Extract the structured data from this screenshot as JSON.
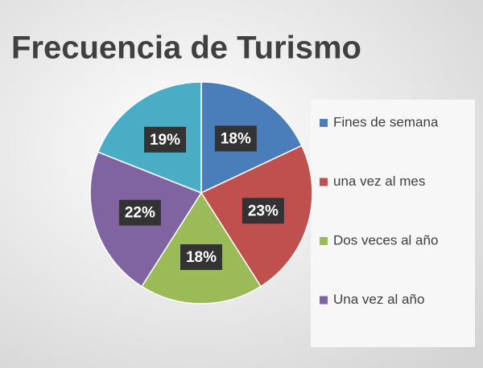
{
  "chart_data": {
    "type": "pie",
    "title": "Frecuencia de Turismo",
    "categories": [
      "Fines de semana",
      "una vez al mes",
      "Dos veces al año",
      "Una vez al año",
      null
    ],
    "values": [
      18,
      23,
      18,
      22,
      19
    ],
    "value_labels": [
      "18%",
      "23%",
      "18%",
      "22%",
      "19%"
    ],
    "colors": [
      "#4a7ebb",
      "#c0504d",
      "#9bbb59",
      "#8064a2",
      "#4bacc6"
    ]
  }
}
